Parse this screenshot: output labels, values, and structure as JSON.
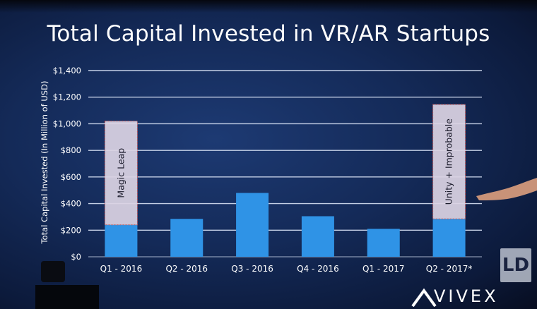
{
  "title": "Total Capital Invested in VR/AR Startups",
  "brand": {
    "name": "VIVEX",
    "watermark": "LD"
  },
  "chart_data": {
    "type": "bar",
    "title": "Total Capital Invested in VR/AR Startups",
    "ylabel": "Total Capital Invested (In Million of USD)",
    "xlabel": "",
    "ylim": [
      0,
      1400
    ],
    "yticks": [
      0,
      200,
      400,
      600,
      800,
      1000,
      1200,
      1400
    ],
    "ytick_labels": [
      "$0",
      "$200",
      "$400",
      "$600",
      "$800",
      "$1,000",
      "$1,200",
      "$1,400"
    ],
    "grid": true,
    "categories": [
      "Q1 - 2016",
      "Q2 - 2016",
      "Q3 - 2016",
      "Q4 - 2016",
      "Q1 - 2017",
      "Q2 - 2017*"
    ],
    "series": [
      {
        "values": [
          240,
          285,
          480,
          305,
          210,
          285
        ]
      },
      {
        "values": [
          780,
          0,
          0,
          0,
          0,
          860
        ]
      }
    ],
    "annotations": [
      {
        "category": "Q1 - 2016",
        "text": "Magic Leap"
      },
      {
        "category": "Q2 - 2017*",
        "text": "Unity + Improbable"
      }
    ],
    "colors": {
      "bar": "#2f93e6",
      "highlight": "#dcd4e4",
      "highlight_border": "#d9534f",
      "grid": "#d8e2f5",
      "text": "#ffffff"
    }
  }
}
